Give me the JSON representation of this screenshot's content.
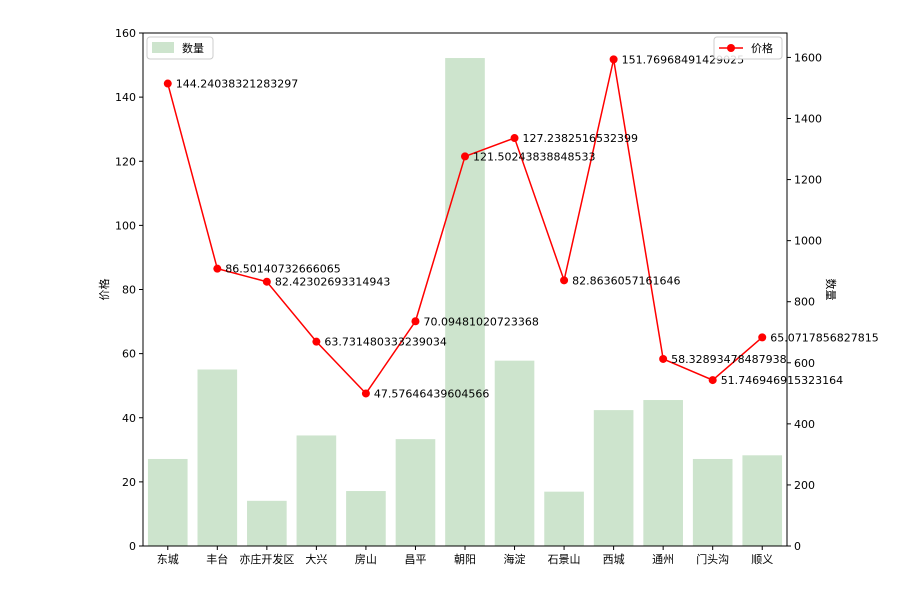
{
  "chart_data": {
    "type": "bar+line",
    "categories": [
      "东城",
      "丰台",
      "亦庄开发区",
      "大兴",
      "房山",
      "昌平",
      "朝阳",
      "海淀",
      "石景山",
      "西城",
      "通州",
      "门头沟",
      "顺义"
    ],
    "bar_series": {
      "name": "数量",
      "values": [
        285,
        578,
        148,
        362,
        180,
        350,
        1598,
        607,
        178,
        445,
        478,
        285,
        297
      ],
      "color": "#cde4cd",
      "axis": "right"
    },
    "line_series": {
      "name": "价格",
      "values": [
        144.24038321283297,
        86.50140732666065,
        82.42302693314943,
        63.731480333239034,
        47.57646439604566,
        70.09481020723368,
        121.50243838848533,
        127.2382516532399,
        82.8636057161646,
        151.76968491429025,
        58.32893478487938,
        51.746946915323164,
        65.0717856827815
      ],
      "labels": [
        "144.24038321283297",
        "86.50140732666065",
        "82.42302693314943",
        "63.731480333239034",
        "47.57646439604566",
        "70.09481020723368",
        "121.50243838848533",
        "127.2382516532399",
        "82.8636057161646",
        "151.76968491429025",
        "58.32893478487938",
        "51.746946915323164",
        "65.0717856827815"
      ],
      "color": "#ff0000",
      "axis": "left"
    },
    "ylabel_left": "价格",
    "ylabel_right": "数量",
    "ylim_left": [
      0,
      160
    ],
    "ylim_right": [
      0,
      1680
    ],
    "yticks_left": [
      "0",
      "20",
      "40",
      "60",
      "80",
      "100",
      "120",
      "140",
      "160"
    ],
    "yticks_right": [
      "0",
      "200",
      "400",
      "600",
      "800",
      "1000",
      "1200",
      "1400",
      "1600"
    ],
    "legend_bar_position": "upper-left",
    "legend_line_position": "upper-right",
    "grid": false
  }
}
